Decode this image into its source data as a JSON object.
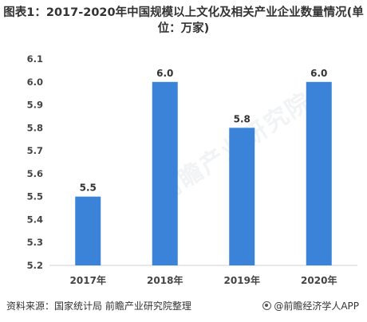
{
  "chart_data": {
    "type": "bar",
    "title": "图表1：2017-2020年中国规模以上文化及相关产业企业数量情况(单位：万家)",
    "categories": [
      "2017年",
      "2018年",
      "2019年",
      "2020年"
    ],
    "values": [
      5.5,
      6.0,
      5.8,
      6.0
    ],
    "data_labels": [
      "5.5",
      "6.0",
      "5.8",
      "6.0"
    ],
    "y_ticks": [
      "5.2",
      "5.3",
      "5.4",
      "5.5",
      "5.6",
      "5.7",
      "5.8",
      "5.9",
      "6.0",
      "6.1"
    ],
    "ylim": [
      5.2,
      6.1
    ],
    "xlabel": "",
    "ylabel": "",
    "grid": false,
    "bar_color": "#3a83d8"
  },
  "footer": {
    "source": "资料来源：国家统计局 前瞻产业研究院整理",
    "brand": "@前瞻经济学人APP"
  },
  "watermark": "前瞻产业研究院"
}
